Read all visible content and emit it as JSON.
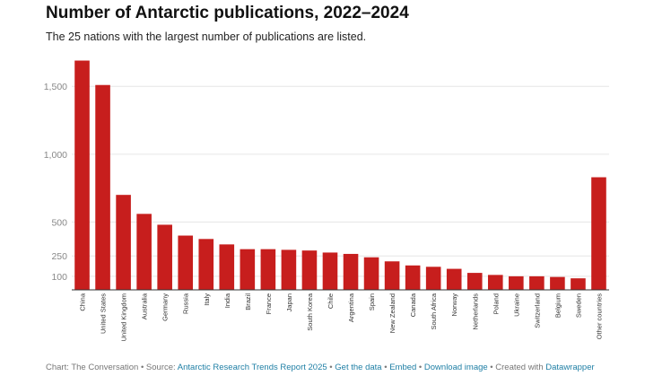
{
  "header": {
    "title": "Number of Antarctic publications, 2022–2024",
    "subtitle": "The 25 nations with the largest number of publications are listed."
  },
  "footer": {
    "chart_credit": "Chart: The Conversation",
    "sep1": " • Source: ",
    "source_link": "Antarctic Research Trends Report 2025",
    "sep2": " • ",
    "get_data_link": "Get the data",
    "sep3": " • ",
    "embed_link": "Embed",
    "sep4": " • ",
    "download_link": "Download image",
    "sep5": " • Created with ",
    "datawrapper_link": "Datawrapper"
  },
  "colors": {
    "bar": "#c71e1d",
    "grid": "#e6e6e6",
    "axis": "#333333",
    "tick_text": "#888888",
    "link": "#1f7fa5"
  },
  "chart_data": {
    "type": "bar",
    "title": "Number of Antarctic publications, 2022–2024",
    "subtitle": "The 25 nations with the largest number of publications are listed.",
    "categories": [
      "China",
      "United States",
      "United Kingdom",
      "Australia",
      "Germany",
      "Russia",
      "Italy",
      "India",
      "Brazil",
      "France",
      "Japan",
      "South Korea",
      "Chile",
      "Argentina",
      "Spain",
      "New Zealand",
      "Canada",
      "South Africa",
      "Norway",
      "Netherlands",
      "Poland",
      "Ukraine",
      "Switzerland",
      "Belgium",
      "Sweden",
      "Other countries"
    ],
    "values": [
      1690,
      1510,
      700,
      560,
      480,
      400,
      375,
      335,
      300,
      300,
      295,
      290,
      275,
      265,
      240,
      210,
      180,
      170,
      155,
      125,
      110,
      100,
      100,
      95,
      85,
      830
    ],
    "yticks": [
      100,
      250,
      500,
      1000,
      1500
    ],
    "ytick_labels": [
      "100",
      "250",
      "500",
      "1,000",
      "1,500"
    ],
    "ylim": [
      0,
      1700
    ],
    "xlabel": "",
    "ylabel": "",
    "grid": true,
    "legend": "none"
  }
}
